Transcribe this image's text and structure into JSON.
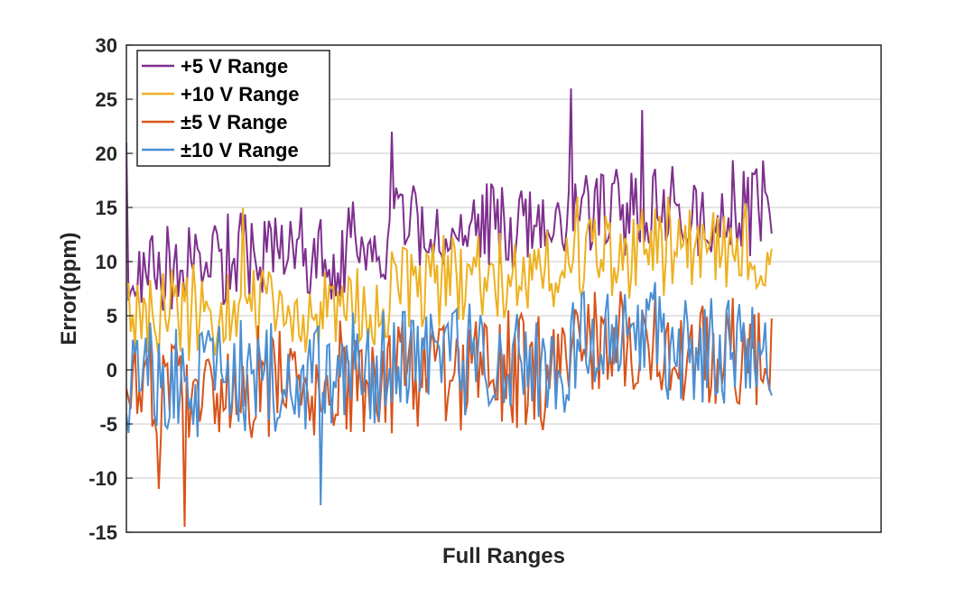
{
  "chart_data": {
    "type": "line",
    "title": "",
    "xlabel": "Full Ranges",
    "ylabel": "Error(ppm)",
    "ylim": [
      -15,
      30
    ],
    "yticks": [
      30,
      25,
      20,
      15,
      10,
      5,
      0,
      -5,
      -10,
      -15
    ],
    "xtick_labels": [],
    "grid": "horizontal",
    "legend_position": "top-left",
    "n_points": 300,
    "series": [
      {
        "name": "+5 V Range",
        "color": "#7E2F8E",
        "trend": [
          [
            0,
            9
          ],
          [
            0.4,
            11.5
          ],
          [
            0.42,
            13
          ],
          [
            0.68,
            13.5
          ],
          [
            0.7,
            15
          ],
          [
            1.0,
            15
          ]
        ],
        "amplitude": 4.5,
        "peaks": [
          [
            0,
            21
          ],
          [
            0.41,
            22
          ],
          [
            0.69,
            26
          ],
          [
            0.8,
            24
          ]
        ]
      },
      {
        "name": "+10 V Range",
        "color": "#EDB120",
        "trend": [
          [
            0,
            5
          ],
          [
            0.4,
            6
          ],
          [
            0.42,
            8
          ],
          [
            0.68,
            8.5
          ],
          [
            0.7,
            11
          ],
          [
            1.0,
            11
          ]
        ],
        "amplitude": 4.5,
        "peaks": [
          [
            0.18,
            15
          ],
          [
            0.7,
            16
          ],
          [
            0.84,
            16
          ]
        ]
      },
      {
        "name": "±5 V Range",
        "color": "#D95319",
        "trend": [
          [
            0,
            -2
          ],
          [
            0.4,
            -1
          ],
          [
            0.42,
            0
          ],
          [
            0.68,
            0
          ],
          [
            0.7,
            1.5
          ],
          [
            1.0,
            1
          ]
        ],
        "amplitude": 6,
        "peaks": [
          [
            0.09,
            -14.5
          ],
          [
            0.05,
            -11
          ]
        ]
      },
      {
        "name": "±10 V Range",
        "color": "#4A8FD4",
        "trend": [
          [
            0,
            -1
          ],
          [
            0.4,
            0
          ],
          [
            0.42,
            1
          ],
          [
            0.68,
            1
          ],
          [
            0.7,
            3
          ],
          [
            1.0,
            2
          ]
        ],
        "amplitude": 5.5,
        "peaks": [
          [
            0.3,
            -12.5
          ]
        ]
      }
    ]
  }
}
